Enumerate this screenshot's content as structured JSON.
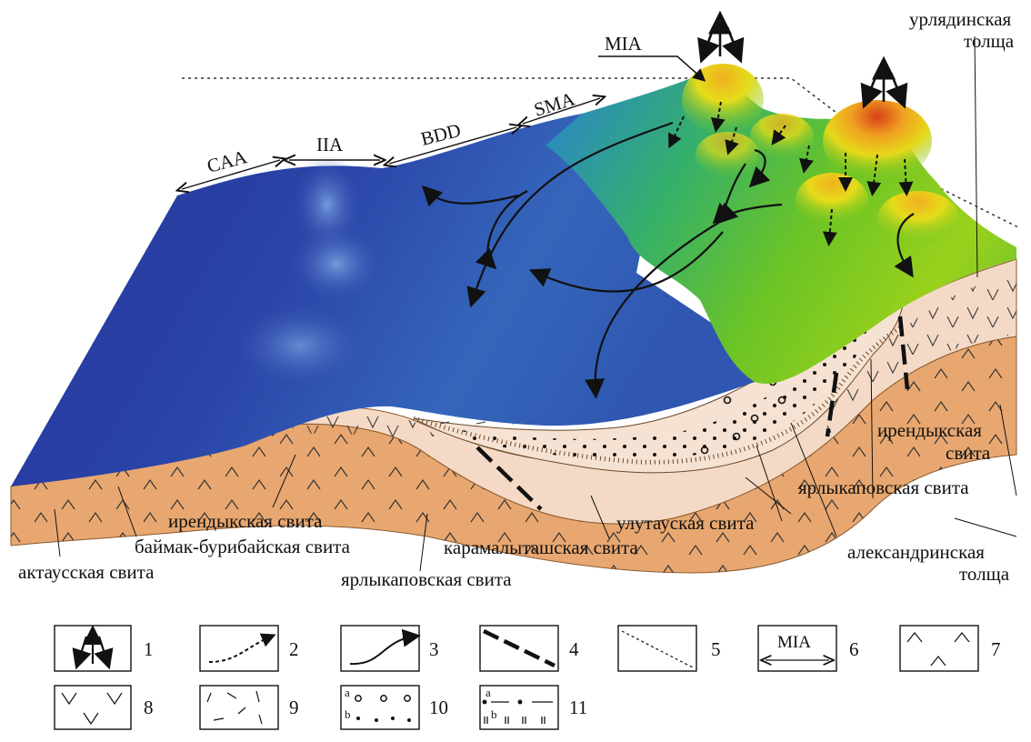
{
  "block_labels": {
    "mia": "MIA",
    "iia": "IIA",
    "caa": "CAA",
    "bdd": "BDD",
    "sma": "SMA"
  },
  "formation_labels": {
    "urlyadinskaya_l1": "урлядинская",
    "urlyadinskaya_l2": "толща",
    "irendykskaya_right_l1": "ирендыкская",
    "irendykskaya_right_l2": "свита",
    "yarlykapovskaya_right": "ярлыкаповская свита",
    "ulutauskaya": "улутауская свита",
    "aleksandrinskaya_l1": "александринская",
    "aleksandrinskaya_l2": "толща",
    "irendykskaya_left": "ирендыкская свита",
    "baymak": "баймак-бурибайская свита",
    "karamalytashskaya": "карамалыташская свита",
    "aktausskaya": "актаусская свита",
    "yarlykapovskaya_bottom": "ярлыкаповская свита"
  },
  "legend": {
    "items": [
      {
        "number": "1"
      },
      {
        "number": "2"
      },
      {
        "number": "3"
      },
      {
        "number": "4"
      },
      {
        "number": "5"
      },
      {
        "number": "6",
        "box_text": "MIA"
      },
      {
        "number": "7"
      },
      {
        "number": "8"
      },
      {
        "number": "9"
      },
      {
        "number": "10",
        "sub_a": "a",
        "sub_b": "b"
      },
      {
        "number": "11",
        "sub_a": "a",
        "sub_b": "b"
      }
    ]
  },
  "colors": {
    "sea_deep": "#1f2f9a",
    "sea_mid": "#3f6dc4",
    "land_green": "#5fbf2a",
    "land_yellow": "#e8d21a",
    "peak_red": "#d8401a",
    "volcanic_light": "#f3d9c4",
    "volcanic_dark": "#e6a572"
  }
}
